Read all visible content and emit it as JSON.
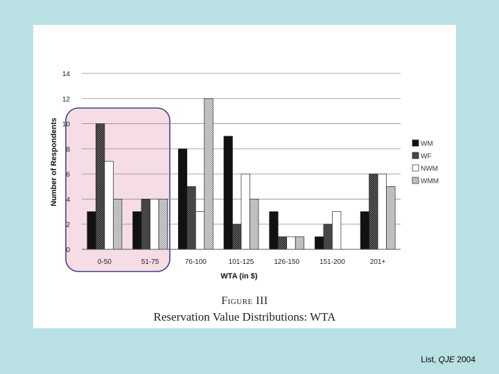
{
  "chart_data": {
    "type": "bar",
    "title": "",
    "xlabel": "WTA (in $)",
    "ylabel": "Number of Respondents",
    "ylim": [
      0,
      14
    ],
    "yticks": [
      0,
      2,
      4,
      6,
      8,
      10,
      12,
      14
    ],
    "categories": [
      "0-50",
      "51-75",
      "76-100",
      "101-125",
      "126-150",
      "151-200",
      "201+"
    ],
    "series": [
      {
        "name": "WM",
        "values": [
          3,
          3,
          8,
          9,
          3,
          1,
          3
        ],
        "color": "#111111"
      },
      {
        "name": "WF",
        "values": [
          10,
          4,
          5,
          2,
          1,
          2,
          6
        ],
        "color": "#555555"
      },
      {
        "name": "NWM",
        "values": [
          7,
          4,
          3,
          6,
          1,
          3,
          6
        ],
        "color": "#ffffff"
      },
      {
        "name": "WMM",
        "values": [
          4,
          4,
          12,
          4,
          1,
          0,
          5
        ],
        "color": "#cfcfcf"
      }
    ],
    "legend_position": "right",
    "highlight": {
      "categories": [
        "0-50",
        "51-75"
      ],
      "fill": "#f6dde3",
      "stroke": "#3d3f8f"
    }
  },
  "figure": {
    "label": "Figure III",
    "caption": "Reservation Value Distributions: WTA"
  },
  "citation": {
    "author": "List, ",
    "journal": "QJE",
    "year": " 2004"
  }
}
